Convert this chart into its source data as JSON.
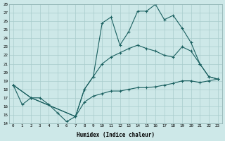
{
  "title": "",
  "xlabel": "Humidex (Indice chaleur)",
  "ylabel": "",
  "bg_color": "#cde8e8",
  "grid_color": "#a8cccc",
  "line_color": "#1a6060",
  "x_ticks": [
    0,
    1,
    2,
    3,
    4,
    5,
    6,
    7,
    8,
    9,
    10,
    11,
    12,
    13,
    14,
    15,
    16,
    17,
    18,
    19,
    20,
    21,
    22,
    23
  ],
  "ylim": [
    14,
    28
  ],
  "y_ticks": [
    14,
    15,
    16,
    17,
    18,
    19,
    20,
    21,
    22,
    23,
    24,
    25,
    26,
    27,
    28
  ],
  "line1_x": [
    0,
    1,
    2,
    3,
    4,
    5,
    6,
    7,
    8,
    9,
    10,
    11,
    12,
    13,
    14,
    15,
    16,
    17,
    18,
    19,
    20,
    21,
    22,
    23
  ],
  "line1_y": [
    18.5,
    16.2,
    17.0,
    17.0,
    16.2,
    15.2,
    14.2,
    14.8,
    18.0,
    19.5,
    25.8,
    26.5,
    23.2,
    24.8,
    27.2,
    27.2,
    28.0,
    26.2,
    26.7,
    25.2,
    23.5,
    21.0,
    19.5,
    19.2
  ],
  "line2_x": [
    0,
    2,
    7,
    8,
    9,
    10,
    11,
    12,
    13,
    14,
    15,
    16,
    17,
    18,
    19,
    20,
    21,
    22,
    23
  ],
  "line2_y": [
    18.5,
    17.0,
    14.8,
    18.0,
    19.5,
    21.0,
    21.8,
    22.3,
    22.8,
    23.2,
    22.8,
    22.5,
    22.0,
    21.8,
    23.0,
    22.5,
    21.0,
    19.5,
    19.2
  ],
  "line3_x": [
    0,
    2,
    7,
    8,
    9,
    10,
    11,
    12,
    13,
    14,
    15,
    16,
    17,
    18,
    19,
    20,
    21,
    22,
    23
  ],
  "line3_y": [
    18.5,
    17.0,
    14.8,
    16.5,
    17.2,
    17.5,
    17.8,
    17.8,
    18.0,
    18.2,
    18.2,
    18.3,
    18.5,
    18.7,
    19.0,
    19.0,
    18.8,
    19.0,
    19.2
  ]
}
